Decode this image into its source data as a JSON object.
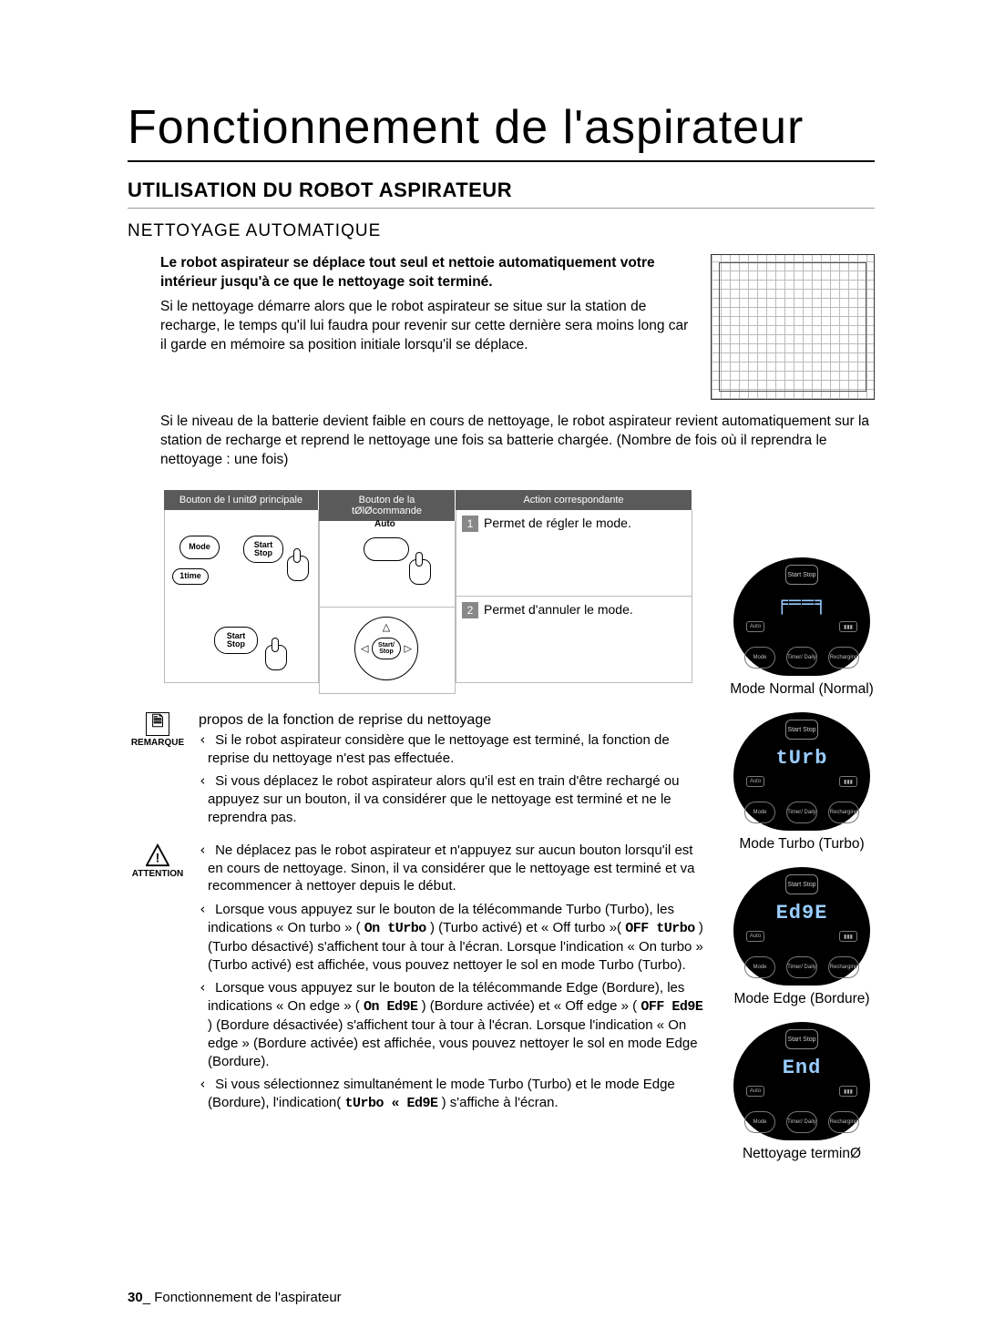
{
  "page_title": "Fonctionnement de l'aspirateur",
  "h1": "UTILISATION DU ROBOT ASPIRATEUR",
  "h2": "NETTOYAGE AUTOMATIQUE",
  "intro_bold": "Le robot aspirateur se déplace tout seul et nettoie automatiquement votre intérieur jusqu'à ce que le nettoyage soit terminé.",
  "intro_p1": "Si le nettoyage démarre alors que le robot aspirateur se situe sur la station de recharge, le temps qu'il lui faudra pour revenir sur cette dernière sera moins long car il garde en mémoire sa position initiale lorsqu'il se déplace.",
  "intro_p2": "Si le niveau de la batterie devient faible en cours de nettoyage, le robot aspirateur revient automatiquement sur la station de recharge et reprend le nettoyage une fois sa batterie chargée. (Nombre de fois où il reprendra le nettoyage : une fois)",
  "table": {
    "headers": [
      "Bouton de l unitØ principale",
      "Bouton de la tØlØcommande",
      "Action correspondante"
    ],
    "main_unit": {
      "mode": "Mode",
      "start_stop": "Start Stop",
      "time": "1time"
    },
    "remote": {
      "auto": "Auto",
      "start_stop": "Start/ Stop"
    },
    "action1": "Permet de régler le mode.",
    "action2": "Permet d'annuler le mode."
  },
  "remarque_label": "REMARQUE",
  "attention_label": "ATTENTION",
  "remarque_lead": "propos de la fonction de reprise du nettoyage",
  "remarque_p1": "Si le robot aspirateur considère que le nettoyage est terminé, la fonction de reprise du nettoyage n'est pas effectuée.",
  "remarque_p2": "Si vous déplacez le robot aspirateur alors qu'il est en train d'être rechargé ou appuyez sur un bouton, il va considérer que le nettoyage est terminé et ne le reprendra pas.",
  "attn_p1": "Ne déplacez pas le robot aspirateur et n'appuyez sur aucun bouton lorsqu'il est en cours de nettoyage. Sinon, il va considérer que le nettoyage est terminé et va recommencer à nettoyer depuis le début.",
  "attn_p2_a": "Lorsque vous appuyez sur le bouton de la télécommande Turbo (Turbo), les indications « On turbo » (",
  "attn_p2_b": ") (Turbo activé) et « Off turbo »(",
  "attn_p2_c": ")(Turbo désactivé) s'affichent tour à tour à l'écran. Lorsque l'indication « On turbo » (Turbo activé) est affichée, vous pouvez nettoyer le sol en mode Turbo (Turbo).",
  "attn_p3_a": "Lorsque vous appuyez sur le bouton de la télécommande Edge (Bordure), les indications « On edge » (",
  "attn_p3_b": ") (Bordure activée) et « Off edge » (",
  "attn_p3_c": ") (Bordure désactivée) s'affichent tour à tour à l'écran. Lorsque l'indication « On edge » (Bordure activée) est affichée, vous pouvez nettoyer le sol en mode Edge (Bordure).",
  "attn_p4_a": "Si vous sélectionnez simultanément le mode Turbo (Turbo) et le mode Edge (Bordure), l'indication(",
  "attn_p4_b": ") s'affiche à l'écran.",
  "seg": {
    "on_turbo": "On tUrbo",
    "off_turbo": "OFF  tUrbo",
    "on_edge": "On Ed9E",
    "off_edge": "OFF  Ed9E",
    "turbo_edge": "tUrbo «  Ed9E"
  },
  "robot_ui": {
    "ss": "Start Stop",
    "auto": "Auto",
    "batt": "▮▮▮",
    "mode": "Mode",
    "timer": "Timer/ Daily",
    "recharge": "Recharging"
  },
  "modes": [
    {
      "display": "╒══╕",
      "caption": "Mode Normal (Normal)"
    },
    {
      "display": "tUrb",
      "caption": "Mode Turbo (Turbo)"
    },
    {
      "display": "Ed9E",
      "caption": "Mode Edge (Bordure)"
    },
    {
      "display": "End",
      "caption": "Nettoyage terminØ"
    }
  ],
  "footer_page": "30",
  "footer_text": "_ Fonctionnement de l'aspirateur"
}
